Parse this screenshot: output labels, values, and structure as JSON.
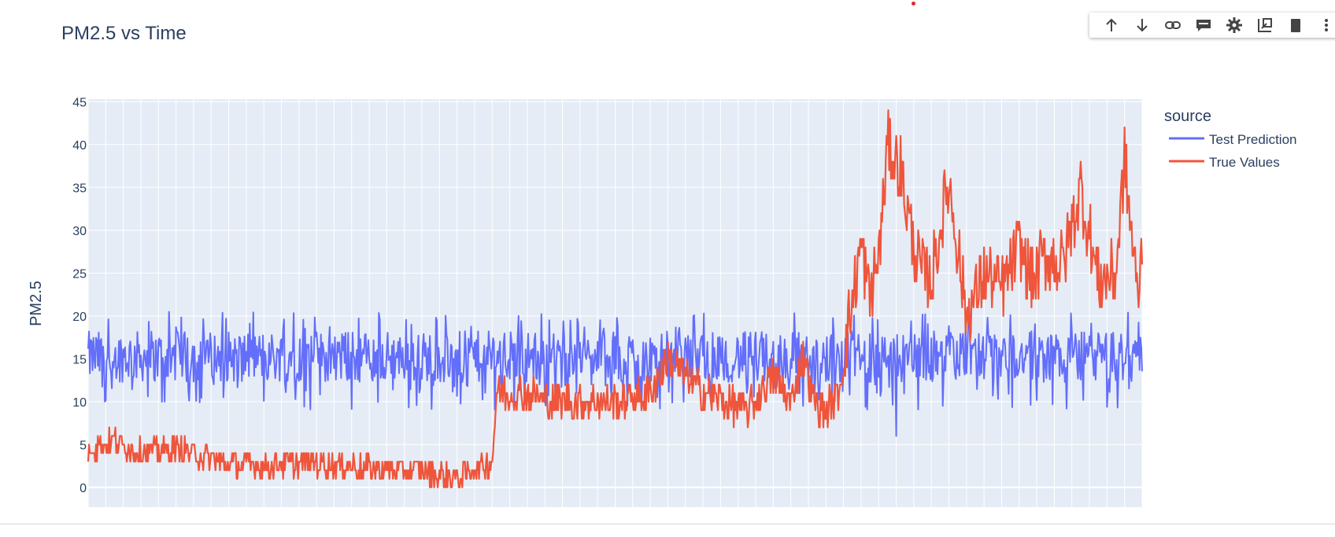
{
  "chart_data": {
    "type": "line",
    "title": "PM2.5 vs Time",
    "xlabel": "",
    "ylabel": "PM2.5",
    "ylim": [
      -2.3,
      45.3
    ],
    "yticks": [
      0,
      5,
      10,
      15,
      20,
      25,
      30,
      35,
      40,
      45
    ],
    "x_tick_labels_shown": false,
    "grid": true,
    "legend": {
      "title": "source",
      "placement": "right"
    },
    "series": [
      {
        "name": "Test Prediction",
        "color": "#636efa",
        "x_range": [
          0,
          1200
        ],
        "envelope": {
          "low": 11,
          "high": 19.5,
          "center": 15.8
        },
        "extremes": {
          "min": 6,
          "max": 20.5
        }
      },
      {
        "name": "True Values",
        "color": "#ef553b",
        "x": [
          0,
          30,
          60,
          100,
          150,
          200,
          250,
          300,
          350,
          380,
          420,
          460,
          465,
          500,
          530,
          560,
          600,
          640,
          660,
          700,
          750,
          780,
          800,
          815,
          825,
          840,
          855,
          870,
          880,
          890,
          900,
          905,
          910,
          925,
          940,
          950,
          960,
          980,
          1000,
          1020,
          1040,
          1060,
          1075,
          1090,
          1110,
          1130,
          1150,
          1170,
          1180,
          1195,
          1200
        ],
        "y": [
          4.5,
          5.5,
          4,
          4.5,
          3,
          2.5,
          3,
          2.5,
          2,
          2,
          1,
          3,
          11,
          11,
          10,
          10,
          10,
          11,
          15,
          11,
          9,
          13,
          10,
          16,
          10,
          9,
          11,
          22,
          28,
          22,
          27,
          33,
          40,
          37,
          28,
          25,
          24,
          36,
          20,
          25,
          23,
          28,
          24,
          27,
          26,
          35,
          24,
          25,
          38,
          22,
          28
        ]
      }
    ]
  },
  "toolbar": {
    "icons": [
      "arrow-up-icon",
      "arrow-down-icon",
      "link-icon",
      "comment-icon",
      "gear-icon",
      "chart-edit-icon",
      "delete-icon",
      "more-icon"
    ]
  }
}
